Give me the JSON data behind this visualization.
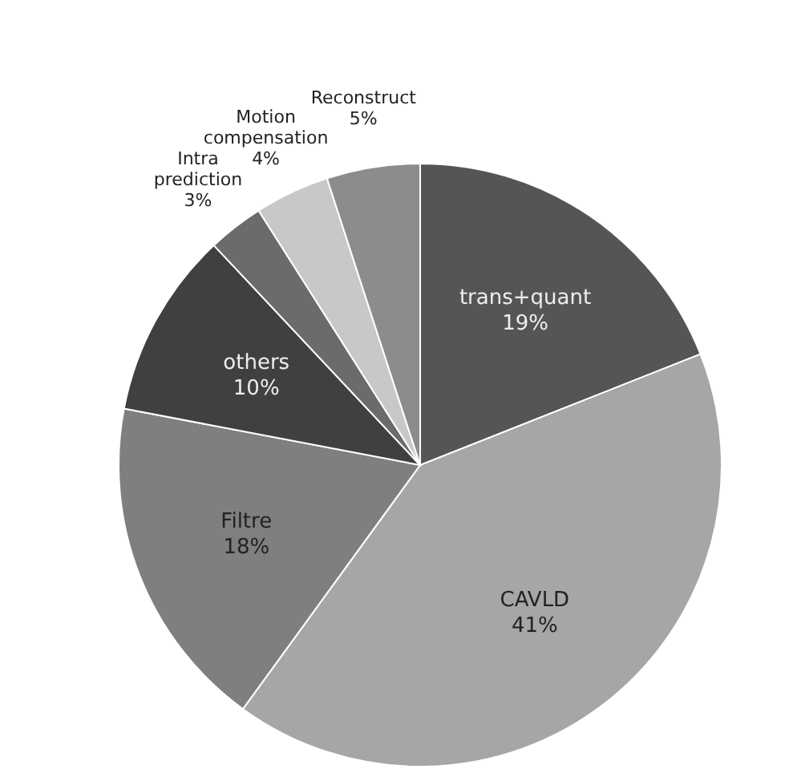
{
  "chart_data": {
    "type": "pie",
    "categories": [
      "trans+quant",
      "CAVLD",
      "Filtre",
      "others",
      "Intra prediction",
      "Motion compensation",
      "Reconstruct"
    ],
    "values": [
      19,
      41,
      18,
      10,
      3,
      4,
      5
    ],
    "value_labels": [
      "19%",
      "41%",
      "18%",
      "10%",
      "3%",
      "4%",
      "5%"
    ],
    "colors": [
      "#555555",
      "#a6a6a6",
      "#7f7f7f",
      "#404040",
      "#6b6b6b",
      "#c8c8c8",
      "#8c8c8c"
    ]
  }
}
